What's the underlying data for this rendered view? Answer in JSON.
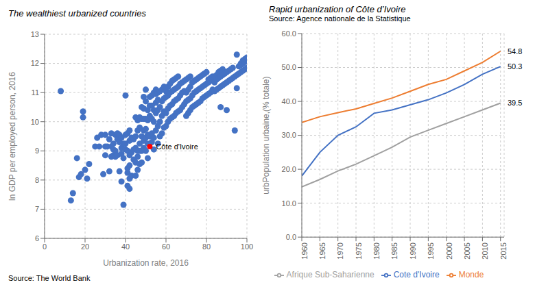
{
  "chart_data": [
    {
      "type": "scatter",
      "title": "The wealthiest urbanized countries",
      "x_label": "Urbanization rate, 2016",
      "y_label": "ln GDP per employed person, 2016",
      "source": "Source: The World Bank",
      "color": "#4472C4",
      "xlim": [
        0,
        100
      ],
      "ylim": [
        6,
        13
      ],
      "xticks": [
        0,
        20,
        40,
        60,
        80,
        100
      ],
      "yticks": [
        6,
        7,
        8,
        9,
        10,
        11,
        12,
        13
      ],
      "grid": true,
      "annotations": [
        {
          "text": "Côte d'Ivoire",
          "x": 52,
          "y": 9.15,
          "color": "#FF0000"
        }
      ],
      "x": [
        8,
        13,
        14,
        16,
        17,
        18,
        19,
        19,
        20,
        21,
        22,
        25,
        26,
        27,
        28,
        29,
        30,
        30,
        30,
        31,
        32,
        32,
        33,
        33,
        33,
        34,
        34,
        34,
        35,
        35,
        35,
        36,
        36,
        36,
        37,
        37,
        37,
        38,
        38,
        38,
        38,
        39,
        39,
        39,
        40,
        40,
        40,
        40,
        41,
        41,
        41,
        41,
        41,
        42,
        42,
        42,
        42,
        42,
        42,
        43,
        43,
        43,
        44,
        44,
        44,
        45,
        45,
        45,
        45,
        45,
        46,
        46,
        46,
        46,
        46,
        47,
        47,
        47,
        47,
        47,
        48,
        48,
        48,
        48,
        48,
        49,
        49,
        49,
        49,
        49,
        49,
        50,
        50,
        50,
        50,
        50,
        50,
        51,
        51,
        51,
        51,
        51,
        52,
        52,
        52,
        52,
        53,
        53,
        53,
        53,
        53,
        54,
        54,
        54,
        54,
        54,
        55,
        55,
        55,
        55,
        55,
        56,
        56,
        56,
        56,
        56,
        57,
        57,
        57,
        57,
        58,
        58,
        58,
        58,
        59,
        59,
        59,
        59,
        60,
        60,
        60,
        60,
        61,
        61,
        61,
        61,
        62,
        62,
        62,
        62,
        63,
        63,
        63,
        63,
        64,
        64,
        64,
        64,
        65,
        65,
        65,
        65,
        66,
        66,
        66,
        66,
        67,
        67,
        67,
        68,
        68,
        68,
        69,
        69,
        69,
        70,
        70,
        70,
        70,
        71,
        71,
        71,
        71,
        72,
        72,
        72,
        72,
        73,
        73,
        73,
        74,
        74,
        74,
        75,
        75,
        75,
        76,
        76,
        76,
        77,
        77,
        77,
        78,
        78,
        78,
        79,
        79,
        79,
        80,
        80,
        80,
        81,
        81,
        81,
        82,
        82,
        82,
        83,
        83,
        83,
        84,
        84,
        84,
        85,
        85,
        85,
        86,
        86,
        86,
        87,
        87,
        87,
        87,
        88,
        88,
        88,
        89,
        89,
        90,
        90,
        90,
        91,
        91,
        92,
        92,
        93,
        93,
        94,
        94,
        95,
        95,
        95,
        96,
        96,
        97,
        97,
        97,
        98,
        98,
        98,
        99,
        99,
        99,
        100,
        100,
        100
      ],
      "values": [
        11.05,
        7.3,
        7.55,
        8.75,
        8.1,
        8.2,
        10.15,
        10.35,
        8.35,
        8.05,
        8.55,
        9.15,
        9.45,
        9.15,
        9.55,
        8.2,
        8.85,
        9.15,
        9.55,
        9.15,
        8.3,
        9.4,
        8.8,
        9.15,
        9.6,
        8.85,
        9.05,
        9.25,
        8.8,
        9.0,
        9.55,
        8.85,
        9.4,
        9.6,
        8.3,
        9.3,
        9.55,
        7.95,
        8.9,
        9.1,
        9.45,
        7.15,
        8.75,
        9.25,
        9.05,
        9.25,
        9.55,
        10.9,
        7.8,
        8.25,
        8.4,
        9.0,
        9.6,
        7.7,
        8.05,
        8.5,
        8.85,
        9.35,
        9.7,
        8.15,
        8.95,
        9.45,
        8.7,
        9.05,
        9.4,
        8.15,
        8.6,
        9.1,
        9.5,
        10.15,
        8.35,
        8.8,
        9.0,
        9.7,
        10.05,
        8.55,
        9.0,
        9.25,
        9.8,
        10.15,
        8.6,
        9.0,
        9.5,
        10.1,
        10.5,
        9.1,
        9.35,
        9.7,
        10.1,
        10.45,
        10.85,
        9.0,
        9.45,
        9.75,
        10.1,
        10.7,
        11.1,
        8.75,
        9.25,
        9.55,
        10.05,
        10.4,
        9.5,
        10.2,
        10.55,
        10.85,
        9.3,
        9.6,
        10.1,
        10.55,
        10.9,
        9.05,
        9.45,
        10.0,
        10.4,
        11.0,
        9.7,
        10.3,
        10.65,
        10.95,
        11.1,
        9.25,
        9.85,
        10.4,
        10.75,
        11.0,
        9.5,
        10.0,
        10.5,
        11.05,
        9.6,
        10.2,
        10.7,
        11.1,
        9.8,
        10.35,
        10.8,
        11.2,
        9.85,
        10.3,
        10.85,
        11.05,
        10.0,
        10.45,
        10.9,
        11.2,
        10.1,
        10.55,
        11.0,
        11.3,
        10.15,
        10.6,
        11.05,
        11.4,
        10.2,
        10.7,
        11.1,
        11.45,
        10.3,
        10.75,
        11.15,
        11.5,
        10.35,
        10.8,
        11.2,
        11.55,
        10.4,
        10.9,
        11.3,
        10.5,
        11.0,
        11.35,
        10.6,
        11.05,
        11.4,
        10.2,
        10.7,
        11.0,
        11.45,
        10.3,
        10.75,
        11.1,
        11.5,
        10.4,
        10.8,
        11.2,
        11.55,
        10.5,
        10.9,
        11.35,
        10.55,
        11.0,
        11.4,
        10.6,
        11.05,
        11.45,
        10.65,
        11.1,
        11.5,
        10.7,
        11.15,
        11.55,
        10.8,
        11.2,
        11.6,
        10.85,
        11.25,
        11.65,
        10.9,
        11.3,
        11.7,
        10.95,
        11.35,
        11.45,
        11.0,
        11.4,
        11.5,
        11.1,
        11.45,
        11.55,
        11.05,
        11.35,
        11.55,
        11.1,
        11.45,
        11.6,
        11.15,
        11.5,
        11.7,
        10.5,
        11.2,
        11.55,
        11.75,
        11.25,
        11.6,
        11.8,
        11.3,
        11.65,
        10.4,
        11.35,
        11.7,
        11.4,
        11.75,
        11.45,
        11.8,
        11.5,
        11.85,
        9.7,
        11.55,
        11.15,
        11.6,
        12.3,
        11.65,
        11.9,
        11.7,
        11.95,
        12.0,
        11.75,
        12.0,
        12.1,
        11.8,
        12.05,
        12.15,
        11.85,
        12.1,
        12.2
      ]
    },
    {
      "type": "line",
      "title": "Rapid urbanization of Côte d’Ivoire",
      "subtitle": "Source: Agence nationale de la Statistique",
      "y_label": "urbPopulation urbaine,(% totale)",
      "x": [
        1960,
        1965,
        1970,
        1975,
        1980,
        1985,
        1990,
        1995,
        2000,
        2005,
        2010,
        2015
      ],
      "xlim": [
        1960,
        2016
      ],
      "xticks": [
        1960,
        1965,
        1970,
        1975,
        1980,
        1985,
        1990,
        1995,
        2000,
        2005,
        2010,
        2015
      ],
      "ylim": [
        0,
        60
      ],
      "yticks": [
        {
          "value": 0,
          "label": "0.0"
        },
        {
          "value": 10,
          "label": "10.0"
        },
        {
          "value": 20,
          "label": "20.0"
        },
        {
          "value": 30,
          "label": "30.0"
        },
        {
          "value": 40,
          "label": "40.0"
        },
        {
          "value": 50,
          "label": "50.0"
        },
        {
          "value": 60,
          "label": "60.0"
        }
      ],
      "grid": true,
      "legend": "bottom",
      "series": [
        {
          "name": "Cote d'Ivoire",
          "color": "#4472C4",
          "values": [
            18.0,
            25.0,
            30.0,
            32.5,
            36.5,
            37.5,
            39.0,
            40.5,
            42.5,
            45.0,
            48.0,
            50.3
          ]
        },
        {
          "name": "Monde",
          "color": "#ED7D31",
          "values": [
            33.8,
            35.5,
            36.7,
            37.8,
            39.4,
            41.0,
            43.0,
            45.0,
            46.5,
            49.0,
            51.5,
            54.8
          ]
        },
        {
          "name": "Afrique Sub-Saharienne",
          "color": "#A0A0A0",
          "values": [
            14.8,
            17.0,
            19.5,
            21.5,
            24.0,
            26.5,
            29.5,
            31.5,
            33.5,
            35.5,
            37.5,
            39.5
          ]
        }
      ],
      "annotations": [
        {
          "text": "54.8",
          "y": 54.8
        },
        {
          "text": "50.3",
          "y": 50.3
        },
        {
          "text": "39.5",
          "y": 39.5
        }
      ]
    }
  ]
}
